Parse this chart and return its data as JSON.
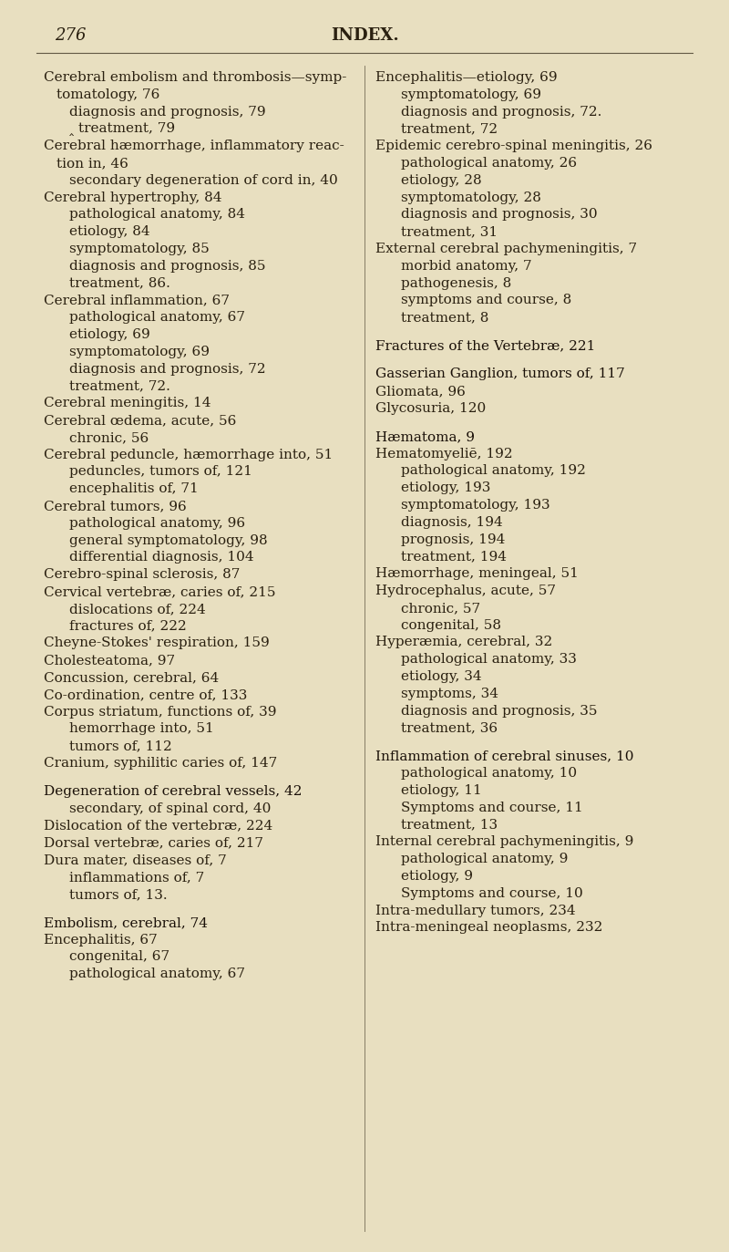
{
  "background_color": "#e8dfc0",
  "page_number": "276",
  "title": "INDEX.",
  "left_column": [
    {
      "text": "Cerebral embolism and thrombosis—symp-",
      "indent": 0,
      "style": "normal"
    },
    {
      "text": "tomatology, 76",
      "indent": 1,
      "style": "normal"
    },
    {
      "text": "diagnosis and prognosis, 79",
      "indent": 2,
      "style": "normal"
    },
    {
      "text": "‸ treatment, 79",
      "indent": 2,
      "style": "normal"
    },
    {
      "text": "Cerebral hæmorrhage, inflammatory reac-",
      "indent": 0,
      "style": "normal"
    },
    {
      "text": "tion in, 46",
      "indent": 1,
      "style": "normal"
    },
    {
      "text": "secondary degeneration of cord in, 40",
      "indent": 2,
      "style": "normal"
    },
    {
      "text": "Cerebral hypertrophy, 84",
      "indent": 0,
      "style": "normal"
    },
    {
      "text": "pathological anatomy, 84",
      "indent": 2,
      "style": "normal"
    },
    {
      "text": "etiology, 84",
      "indent": 2,
      "style": "normal"
    },
    {
      "text": "symptomatology, 85",
      "indent": 2,
      "style": "normal"
    },
    {
      "text": "diagnosis and prognosis, 85",
      "indent": 2,
      "style": "normal"
    },
    {
      "text": "treatment, 86.",
      "indent": 2,
      "style": "normal"
    },
    {
      "text": "Cerebral inflammation, 67",
      "indent": 0,
      "style": "normal"
    },
    {
      "text": "pathological anatomy, 67",
      "indent": 2,
      "style": "normal"
    },
    {
      "text": "etiology, 69",
      "indent": 2,
      "style": "normal"
    },
    {
      "text": "symptomatology, 69",
      "indent": 2,
      "style": "normal"
    },
    {
      "text": "diagnosis and prognosis, 72",
      "indent": 2,
      "style": "normal"
    },
    {
      "text": "treatment, 72.",
      "indent": 2,
      "style": "normal"
    },
    {
      "text": "Cerebral meningitis, 14",
      "indent": 0,
      "style": "normal"
    },
    {
      "text": "Cerebral œdema, acute, 56",
      "indent": 0,
      "style": "normal"
    },
    {
      "text": "chronic, 56",
      "indent": 2,
      "style": "normal"
    },
    {
      "text": "Cerebral peduncle, hæmorrhage into, 51",
      "indent": 0,
      "style": "normal"
    },
    {
      "text": "peduncles, tumors of, 121",
      "indent": 2,
      "style": "normal"
    },
    {
      "text": "encephalitis of, 71",
      "indent": 2,
      "style": "normal"
    },
    {
      "text": "Cerebral tumors, 96",
      "indent": 0,
      "style": "normal"
    },
    {
      "text": "pathological anatomy, 96",
      "indent": 2,
      "style": "normal"
    },
    {
      "text": "general symptomatology, 98",
      "indent": 2,
      "style": "normal"
    },
    {
      "text": "differential diagnosis, 104",
      "indent": 2,
      "style": "normal"
    },
    {
      "text": "Cerebro-spinal sclerosis, 87",
      "indent": 0,
      "style": "normal"
    },
    {
      "text": "Cervical vertebræ, caries of, 215",
      "indent": 0,
      "style": "normal"
    },
    {
      "text": "dislocations of, 224",
      "indent": 2,
      "style": "normal"
    },
    {
      "text": "fractures of, 222",
      "indent": 2,
      "style": "normal"
    },
    {
      "text": "Cheyne-Stokes' respiration, 159",
      "indent": 0,
      "style": "normal"
    },
    {
      "text": "Cholesteatoma, 97",
      "indent": 0,
      "style": "normal"
    },
    {
      "text": "Concussion, cerebral, 64",
      "indent": 0,
      "style": "normal"
    },
    {
      "text": "Co-ordination, centre of, 133",
      "indent": 0,
      "style": "normal"
    },
    {
      "text": "Corpus striatum, functions of, 39",
      "indent": 0,
      "style": "normal"
    },
    {
      "text": "hemorrhage into, 51",
      "indent": 2,
      "style": "normal"
    },
    {
      "text": "tumors of, 112",
      "indent": 2,
      "style": "normal"
    },
    {
      "text": "Cranium, syphilitic caries of, 147",
      "indent": 0,
      "style": "normal"
    },
    {
      "text": "",
      "indent": 0,
      "style": "blank"
    },
    {
      "text": "Degeneration of cerebral vessels, 42",
      "indent": 0,
      "style": "smallcaps"
    },
    {
      "text": "secondary, of spinal cord, 40",
      "indent": 2,
      "style": "normal"
    },
    {
      "text": "Dislocation of the vertebræ, 224",
      "indent": 0,
      "style": "normal"
    },
    {
      "text": "Dorsal vertebræ, caries of, 217",
      "indent": 0,
      "style": "normal"
    },
    {
      "text": "Dura mater, diseases of, 7",
      "indent": 0,
      "style": "normal"
    },
    {
      "text": "inflammations of, 7",
      "indent": 2,
      "style": "normal"
    },
    {
      "text": "tumors of, 13.",
      "indent": 2,
      "style": "normal"
    },
    {
      "text": "",
      "indent": 0,
      "style": "blank"
    },
    {
      "text": "Embolism, cerebral, 74",
      "indent": 0,
      "style": "smallcaps"
    },
    {
      "text": "Encephalitis, 67",
      "indent": 0,
      "style": "normal"
    },
    {
      "text": "congenital, 67",
      "indent": 2,
      "style": "normal"
    },
    {
      "text": "pathological anatomy, 67",
      "indent": 2,
      "style": "normal"
    }
  ],
  "right_column": [
    {
      "text": "Encephalitis—etiology, 69",
      "indent": 0,
      "style": "normal"
    },
    {
      "text": "symptomatology, 69",
      "indent": 2,
      "style": "normal"
    },
    {
      "text": "diagnosis and prognosis, 72.",
      "indent": 2,
      "style": "normal"
    },
    {
      "text": "treatment, 72",
      "indent": 2,
      "style": "normal"
    },
    {
      "text": "Epidemic cerebro-spinal meningitis, 26",
      "indent": 0,
      "style": "normal"
    },
    {
      "text": "pathological anatomy, 26",
      "indent": 2,
      "style": "normal"
    },
    {
      "text": "etiology, 28",
      "indent": 2,
      "style": "normal"
    },
    {
      "text": "symptomatology, 28",
      "indent": 2,
      "style": "normal"
    },
    {
      "text": "diagnosis and prognosis, 30",
      "indent": 2,
      "style": "normal"
    },
    {
      "text": "treatment, 31",
      "indent": 2,
      "style": "normal"
    },
    {
      "text": "External cerebral pachymeningitis, 7",
      "indent": 0,
      "style": "normal"
    },
    {
      "text": "morbid anatomy, 7",
      "indent": 2,
      "style": "normal"
    },
    {
      "text": "pathogenesis, 8",
      "indent": 2,
      "style": "normal"
    },
    {
      "text": "symptoms and course, 8",
      "indent": 2,
      "style": "normal"
    },
    {
      "text": "treatment, 8",
      "indent": 2,
      "style": "normal"
    },
    {
      "text": "",
      "indent": 0,
      "style": "blank"
    },
    {
      "text": "Fractures of the Vertebræ, 221",
      "indent": 0,
      "style": "smallcaps_heading"
    },
    {
      "text": "",
      "indent": 0,
      "style": "blank"
    },
    {
      "text": "Gasserian Ganglion, tumors of, 117",
      "indent": 0,
      "style": "smallcaps_heading"
    },
    {
      "text": "Gliomata, 96",
      "indent": 0,
      "style": "normal"
    },
    {
      "text": "Glycosuria, 120",
      "indent": 0,
      "style": "normal"
    },
    {
      "text": "",
      "indent": 0,
      "style": "blank"
    },
    {
      "text": "Hæmatoma, 9",
      "indent": 0,
      "style": "smallcaps_heading"
    },
    {
      "text": "Hematomyeliē, 192",
      "indent": 0,
      "style": "normal"
    },
    {
      "text": "pathological anatomy, 192",
      "indent": 2,
      "style": "normal"
    },
    {
      "text": "etiology, 193",
      "indent": 2,
      "style": "normal"
    },
    {
      "text": "symptomatology, 193",
      "indent": 2,
      "style": "normal"
    },
    {
      "text": "diagnosis, 194",
      "indent": 2,
      "style": "normal"
    },
    {
      "text": "prognosis, 194",
      "indent": 2,
      "style": "normal"
    },
    {
      "text": "treatment, 194",
      "indent": 2,
      "style": "normal"
    },
    {
      "text": "Hæmorrhage, meningeal, 51",
      "indent": 0,
      "style": "normal"
    },
    {
      "text": "Hydrocephalus, acute, 57",
      "indent": 0,
      "style": "normal"
    },
    {
      "text": "chronic, 57",
      "indent": 2,
      "style": "normal"
    },
    {
      "text": "congenital, 58",
      "indent": 2,
      "style": "normal"
    },
    {
      "text": "Hyperæmia, cerebral, 32",
      "indent": 0,
      "style": "normal"
    },
    {
      "text": "pathological anatomy, 33",
      "indent": 2,
      "style": "normal"
    },
    {
      "text": "etiology, 34",
      "indent": 2,
      "style": "normal"
    },
    {
      "text": "symptoms, 34",
      "indent": 2,
      "style": "normal"
    },
    {
      "text": "diagnosis and prognosis, 35",
      "indent": 2,
      "style": "normal"
    },
    {
      "text": "treatment, 36",
      "indent": 2,
      "style": "normal"
    },
    {
      "text": "",
      "indent": 0,
      "style": "blank"
    },
    {
      "text": "Inflammation of cerebral sinuses, 10",
      "indent": 0,
      "style": "smallcaps_heading"
    },
    {
      "text": "pathological anatomy, 10",
      "indent": 2,
      "style": "normal"
    },
    {
      "text": "etiology, 11",
      "indent": 2,
      "style": "normal"
    },
    {
      "text": "Symptoms and course, 11",
      "indent": 2,
      "style": "normal"
    },
    {
      "text": "treatment, 13",
      "indent": 2,
      "style": "normal"
    },
    {
      "text": "Internal cerebral pachymeningitis, 9",
      "indent": 0,
      "style": "normal"
    },
    {
      "text": "pathological anatomy, 9",
      "indent": 2,
      "style": "normal"
    },
    {
      "text": "etiology, 9",
      "indent": 2,
      "style": "normal"
    },
    {
      "text": "Symptoms and course, 10",
      "indent": 2,
      "style": "normal"
    },
    {
      "text": "Intra-medullary tumors, 234",
      "indent": 0,
      "style": "normal"
    },
    {
      "text": "Intra-meningeal neoplasms, 232",
      "indent": 0,
      "style": "normal"
    }
  ],
  "font_size": 11.0,
  "title_font_size": 13,
  "page_num_font_size": 13,
  "text_color": "#2a2010",
  "smallcaps_color": "#1a1008"
}
